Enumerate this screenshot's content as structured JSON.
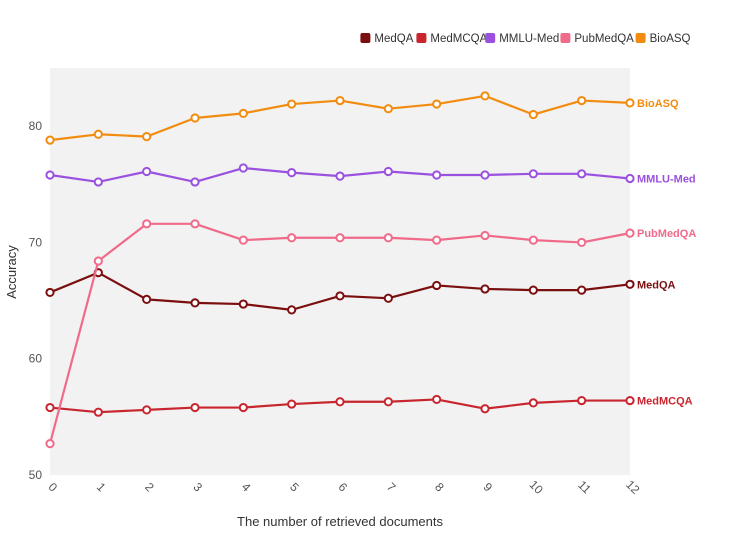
{
  "chart_data": {
    "type": "line",
    "x": [
      0,
      1,
      2,
      3,
      4,
      5,
      6,
      7,
      8,
      9,
      10,
      11,
      12
    ],
    "xlabel": "The number of retrieved documents",
    "ylabel": "Accuracy",
    "ylim": [
      50,
      85
    ],
    "yticks": [
      50,
      60,
      70,
      80
    ],
    "grid": false,
    "legend_position": "top-right",
    "background": "#f2f2f2",
    "series": [
      {
        "name": "MedQA",
        "color": "#7b0f0f",
        "values": [
          65.7,
          67.4,
          65.1,
          64.8,
          64.7,
          64.2,
          65.4,
          65.2,
          66.3,
          66.0,
          65.9,
          65.9,
          66.4
        ]
      },
      {
        "name": "MedMCQA",
        "color": "#c8262f",
        "values": [
          55.8,
          55.4,
          55.6,
          55.8,
          55.8,
          56.1,
          56.3,
          56.3,
          56.5,
          55.7,
          56.2,
          56.4,
          56.4
        ]
      },
      {
        "name": "MMLU-Med",
        "color": "#9b51e0",
        "values": [
          75.8,
          75.2,
          76.1,
          75.2,
          76.4,
          76.0,
          75.7,
          76.1,
          75.8,
          75.8,
          75.9,
          75.9,
          75.5
        ]
      },
      {
        "name": "PubMedQA",
        "color": "#f06a8a",
        "values": [
          52.7,
          68.4,
          71.6,
          71.6,
          70.2,
          70.4,
          70.4,
          70.4,
          70.2,
          70.6,
          70.2,
          70.0,
          70.8
        ]
      },
      {
        "name": "BioASQ",
        "color": "#f28c0f",
        "values": [
          78.8,
          79.3,
          79.1,
          80.7,
          81.1,
          81.9,
          82.2,
          81.5,
          81.9,
          82.6,
          81.0,
          82.2,
          82.0
        ]
      }
    ]
  }
}
